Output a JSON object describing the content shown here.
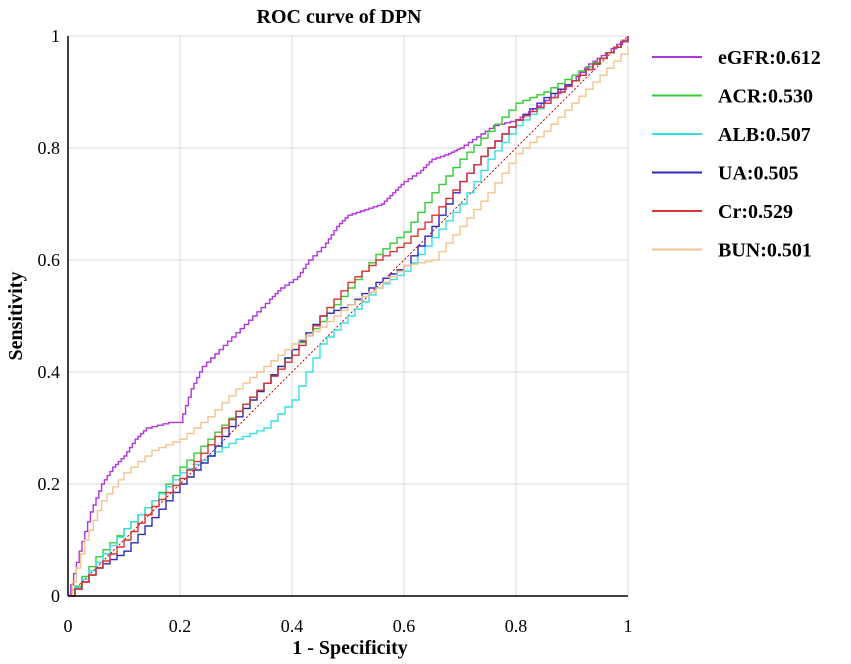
{
  "chart_data": {
    "type": "line",
    "title": "ROC curve of DPN",
    "xlabel": "1 - Specificity",
    "ylabel": "Sensitivity",
    "xlim": [
      0,
      1
    ],
    "ylim": [
      0,
      1
    ],
    "x_ticks": [
      "0",
      "0.2",
      "0.4",
      "0.6",
      "0.8",
      "1"
    ],
    "y_ticks": [
      "0",
      "0.2",
      "0.4",
      "0.6",
      "0.8",
      "1"
    ],
    "grid": true,
    "legend_position": "right",
    "reference_line": {
      "name": "reference-diagonal",
      "color": "#cc0000",
      "style": "dotted",
      "points": [
        [
          0,
          0
        ],
        [
          1,
          1
        ]
      ]
    },
    "series": [
      {
        "name": "eGFR",
        "label": "eGFR:0.612",
        "color": "#b035e0",
        "points": [
          [
            0,
            0
          ],
          [
            0.02,
            0.08
          ],
          [
            0.04,
            0.15
          ],
          [
            0.06,
            0.2
          ],
          [
            0.08,
            0.23
          ],
          [
            0.1,
            0.25
          ],
          [
            0.12,
            0.28
          ],
          [
            0.14,
            0.3
          ],
          [
            0.18,
            0.31
          ],
          [
            0.2,
            0.31
          ],
          [
            0.22,
            0.37
          ],
          [
            0.24,
            0.41
          ],
          [
            0.27,
            0.44
          ],
          [
            0.3,
            0.47
          ],
          [
            0.33,
            0.5
          ],
          [
            0.36,
            0.53
          ],
          [
            0.38,
            0.55
          ],
          [
            0.41,
            0.57
          ],
          [
            0.43,
            0.6
          ],
          [
            0.46,
            0.63
          ],
          [
            0.48,
            0.66
          ],
          [
            0.5,
            0.68
          ],
          [
            0.53,
            0.69
          ],
          [
            0.56,
            0.7
          ],
          [
            0.58,
            0.72
          ],
          [
            0.6,
            0.74
          ],
          [
            0.63,
            0.76
          ],
          [
            0.65,
            0.78
          ],
          [
            0.68,
            0.79
          ],
          [
            0.7,
            0.8
          ],
          [
            0.73,
            0.82
          ],
          [
            0.76,
            0.84
          ],
          [
            0.8,
            0.85
          ],
          [
            0.83,
            0.87
          ],
          [
            0.86,
            0.89
          ],
          [
            0.9,
            0.92
          ],
          [
            0.93,
            0.95
          ],
          [
            0.96,
            0.97
          ],
          [
            1,
            1
          ]
        ]
      },
      {
        "name": "ACR",
        "label": "ACR:0.530",
        "color": "#33cc33",
        "points": [
          [
            0,
            0
          ],
          [
            0.05,
            0.07
          ],
          [
            0.1,
            0.12
          ],
          [
            0.15,
            0.17
          ],
          [
            0.2,
            0.23
          ],
          [
            0.25,
            0.28
          ],
          [
            0.3,
            0.33
          ],
          [
            0.35,
            0.38
          ],
          [
            0.4,
            0.44
          ],
          [
            0.45,
            0.49
          ],
          [
            0.5,
            0.55
          ],
          [
            0.55,
            0.61
          ],
          [
            0.6,
            0.65
          ],
          [
            0.65,
            0.72
          ],
          [
            0.7,
            0.78
          ],
          [
            0.75,
            0.83
          ],
          [
            0.8,
            0.88
          ],
          [
            0.85,
            0.9
          ],
          [
            0.9,
            0.93
          ],
          [
            0.95,
            0.96
          ],
          [
            1,
            1
          ]
        ]
      },
      {
        "name": "ALB",
        "label": "ALB:0.507",
        "color": "#33e0e0",
        "points": [
          [
            0,
            0
          ],
          [
            0.05,
            0.06
          ],
          [
            0.1,
            0.12
          ],
          [
            0.15,
            0.17
          ],
          [
            0.2,
            0.22
          ],
          [
            0.25,
            0.25
          ],
          [
            0.3,
            0.28
          ],
          [
            0.35,
            0.3
          ],
          [
            0.4,
            0.35
          ],
          [
            0.45,
            0.45
          ],
          [
            0.5,
            0.5
          ],
          [
            0.55,
            0.55
          ],
          [
            0.6,
            0.58
          ],
          [
            0.65,
            0.64
          ],
          [
            0.7,
            0.7
          ],
          [
            0.75,
            0.78
          ],
          [
            0.8,
            0.84
          ],
          [
            0.85,
            0.88
          ],
          [
            0.9,
            0.92
          ],
          [
            0.95,
            0.96
          ],
          [
            1,
            1
          ]
        ]
      },
      {
        "name": "UA",
        "label": "UA:0.505",
        "color": "#2b2bbf",
        "points": [
          [
            0,
            0
          ],
          [
            0.05,
            0.05
          ],
          [
            0.1,
            0.08
          ],
          [
            0.15,
            0.14
          ],
          [
            0.2,
            0.2
          ],
          [
            0.25,
            0.25
          ],
          [
            0.3,
            0.32
          ],
          [
            0.35,
            0.38
          ],
          [
            0.4,
            0.44
          ],
          [
            0.45,
            0.5
          ],
          [
            0.5,
            0.52
          ],
          [
            0.55,
            0.56
          ],
          [
            0.6,
            0.59
          ],
          [
            0.65,
            0.66
          ],
          [
            0.7,
            0.74
          ],
          [
            0.75,
            0.8
          ],
          [
            0.8,
            0.85
          ],
          [
            0.85,
            0.89
          ],
          [
            0.9,
            0.92
          ],
          [
            0.95,
            0.96
          ],
          [
            1,
            1
          ]
        ]
      },
      {
        "name": "Cr",
        "label": "Cr:0.529",
        "color": "#dd3333",
        "points": [
          [
            0,
            0
          ],
          [
            0.05,
            0.05
          ],
          [
            0.1,
            0.1
          ],
          [
            0.15,
            0.16
          ],
          [
            0.2,
            0.21
          ],
          [
            0.25,
            0.27
          ],
          [
            0.3,
            0.33
          ],
          [
            0.35,
            0.38
          ],
          [
            0.4,
            0.43
          ],
          [
            0.45,
            0.5
          ],
          [
            0.5,
            0.56
          ],
          [
            0.55,
            0.6
          ],
          [
            0.6,
            0.63
          ],
          [
            0.65,
            0.68
          ],
          [
            0.7,
            0.74
          ],
          [
            0.75,
            0.8
          ],
          [
            0.8,
            0.85
          ],
          [
            0.85,
            0.88
          ],
          [
            0.9,
            0.92
          ],
          [
            0.95,
            0.96
          ],
          [
            1,
            1
          ]
        ]
      },
      {
        "name": "BUN",
        "label": "BUN:0.501",
        "color": "#f2c48d",
        "points": [
          [
            0,
            0
          ],
          [
            0.03,
            0.1
          ],
          [
            0.06,
            0.17
          ],
          [
            0.1,
            0.22
          ],
          [
            0.15,
            0.26
          ],
          [
            0.2,
            0.28
          ],
          [
            0.25,
            0.32
          ],
          [
            0.3,
            0.37
          ],
          [
            0.35,
            0.41
          ],
          [
            0.4,
            0.45
          ],
          [
            0.45,
            0.48
          ],
          [
            0.5,
            0.52
          ],
          [
            0.55,
            0.55
          ],
          [
            0.6,
            0.59
          ],
          [
            0.65,
            0.6
          ],
          [
            0.7,
            0.66
          ],
          [
            0.75,
            0.72
          ],
          [
            0.8,
            0.79
          ],
          [
            0.85,
            0.83
          ],
          [
            0.9,
            0.88
          ],
          [
            0.95,
            0.93
          ],
          [
            1,
            0.98
          ]
        ]
      }
    ]
  }
}
